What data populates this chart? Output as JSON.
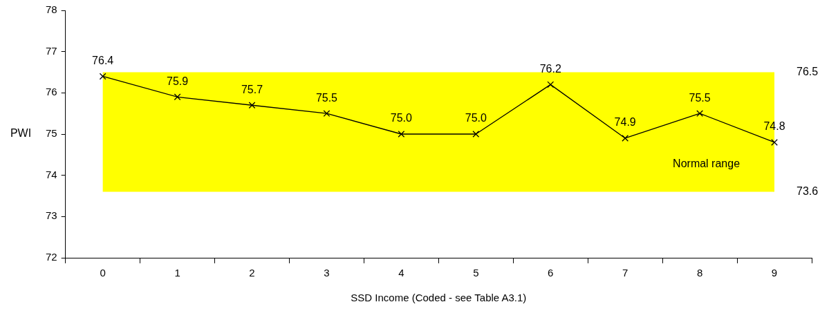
{
  "chart_data": {
    "type": "line",
    "xlabel": "SSD Income (Coded - see Table A3.1)",
    "ylabel": "PWI",
    "categories": [
      "0",
      "1",
      "2",
      "3",
      "4",
      "5",
      "6",
      "7",
      "8",
      "9"
    ],
    "series": [
      {
        "color": "#000000",
        "values": [
          76.4,
          75.9,
          75.7,
          75.5,
          75.0,
          75.0,
          76.2,
          74.9,
          75.5,
          74.8
        ],
        "value_labels": [
          "76.4",
          "75.9",
          "75.7",
          "75.5",
          "75.0",
          "75.0",
          "76.2",
          "74.9",
          "75.5",
          "74.8"
        ]
      }
    ],
    "ylim": [
      72,
      78
    ],
    "yticks": [
      72,
      73,
      74,
      75,
      76,
      77,
      78
    ],
    "bands": [
      {
        "axis": "y",
        "from": 73.6,
        "to": 76.5,
        "label": "Normal range",
        "color": "#ffff00"
      }
    ],
    "annotations": [
      {
        "text": "76.5",
        "x": "9",
        "y": 76.5
      },
      {
        "text": "73.6",
        "x": "9",
        "y": 73.6
      }
    ],
    "marker": "cross",
    "line_style": "solid",
    "grid": false,
    "legend": false
  }
}
